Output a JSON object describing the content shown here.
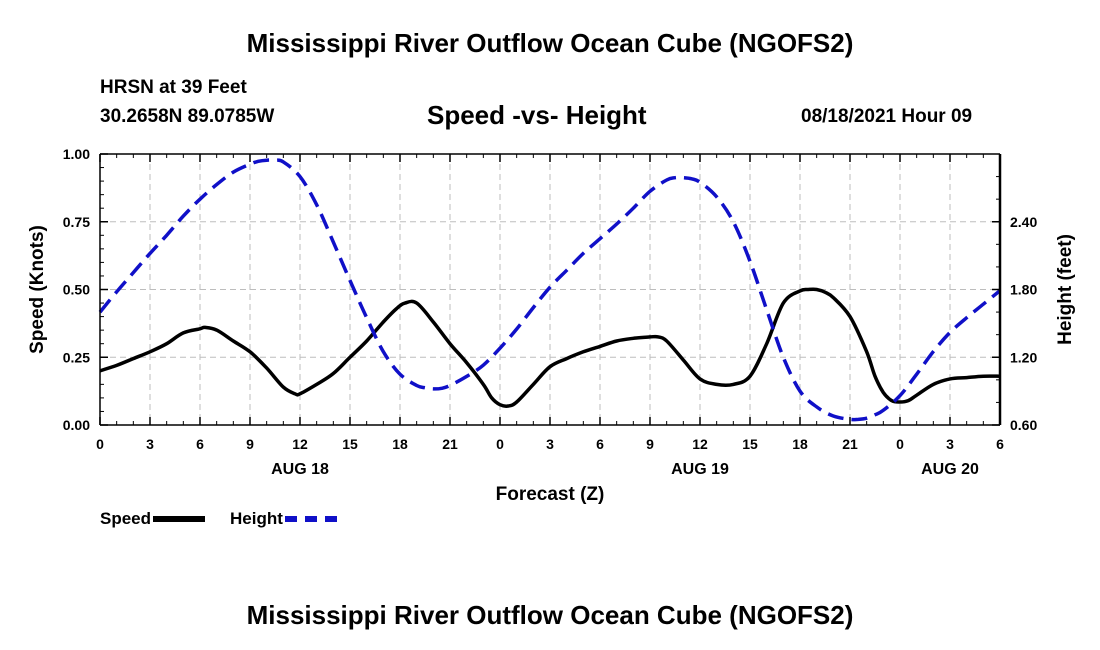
{
  "header": {
    "title": "Mississippi River Outflow Ocean Cube (NGOFS2)",
    "station": "HRSN at 39 Feet",
    "coordinates": "30.2658N  89.0785W",
    "subtitle": "Speed -vs- Height",
    "datetime": "08/18/2021 Hour 09"
  },
  "footer": {
    "title": "Mississippi River Outflow Ocean Cube (NGOFS2)"
  },
  "legend": {
    "speed_label": "Speed",
    "height_label": "Height"
  },
  "chart_data": {
    "type": "line",
    "title": "Speed -vs- Height",
    "xlabel": "Forecast (Z)",
    "ylabel_left": "Speed (Knots)",
    "ylabel_right": "Height (feet)",
    "x_unit": "forecast hours from 00Z Aug 18",
    "xlim": [
      0,
      54
    ],
    "ylim_left": [
      0,
      1.0
    ],
    "ylim_right": [
      0.6,
      3.0
    ],
    "grid": true,
    "legend_position": "bottom-left",
    "x_ticks": [
      {
        "x": 0,
        "label": "0"
      },
      {
        "x": 3,
        "label": "3"
      },
      {
        "x": 6,
        "label": "6"
      },
      {
        "x": 9,
        "label": "9"
      },
      {
        "x": 12,
        "label": "12"
      },
      {
        "x": 15,
        "label": "15"
      },
      {
        "x": 18,
        "label": "18"
      },
      {
        "x": 21,
        "label": "21"
      },
      {
        "x": 24,
        "label": "0"
      },
      {
        "x": 27,
        "label": "3"
      },
      {
        "x": 30,
        "label": "6"
      },
      {
        "x": 33,
        "label": "9"
      },
      {
        "x": 36,
        "label": "12"
      },
      {
        "x": 39,
        "label": "15"
      },
      {
        "x": 42,
        "label": "18"
      },
      {
        "x": 45,
        "label": "21"
      },
      {
        "x": 48,
        "label": "0"
      },
      {
        "x": 51,
        "label": "3"
      },
      {
        "x": 54,
        "label": "6"
      }
    ],
    "date_labels": [
      {
        "x": 12,
        "label": "AUG 18"
      },
      {
        "x": 36,
        "label": "AUG 19"
      },
      {
        "x": 51,
        "label": "AUG 20"
      }
    ],
    "y_ticks_left": [
      {
        "value": 0.0,
        "label": "0.00"
      },
      {
        "value": 0.25,
        "label": "0.25"
      },
      {
        "value": 0.5,
        "label": "0.50"
      },
      {
        "value": 0.75,
        "label": "0.75"
      },
      {
        "value": 1.0,
        "label": "1.00"
      }
    ],
    "y_ticks_right": [
      {
        "value": 0.6,
        "label": "0.60"
      },
      {
        "value": 1.2,
        "label": "1.20"
      },
      {
        "value": 1.8,
        "label": "1.80"
      },
      {
        "value": 2.4,
        "label": "2.40"
      }
    ],
    "series": [
      {
        "name": "Speed",
        "axis": "left",
        "color": "#000000",
        "style": "solid",
        "x": [
          0,
          1,
          2,
          3,
          4,
          5,
          6,
          6.3,
          7,
          8,
          9,
          10,
          11,
          11.7,
          12,
          13,
          14,
          15,
          16,
          17,
          17.8,
          18.3,
          19,
          20,
          21,
          22,
          23,
          23.5,
          24,
          24.5,
          25,
          26,
          27,
          28,
          29,
          30,
          31,
          32,
          33,
          33.5,
          34,
          35,
          36,
          37,
          38,
          39,
          40,
          41,
          42,
          42.5,
          43,
          43.5,
          44,
          45,
          46,
          46.5,
          47,
          47.5,
          48,
          48.5,
          49,
          50,
          51,
          52,
          53,
          54
        ],
        "y": [
          0.2,
          0.22,
          0.245,
          0.27,
          0.3,
          0.34,
          0.355,
          0.36,
          0.35,
          0.31,
          0.27,
          0.21,
          0.14,
          0.115,
          0.115,
          0.15,
          0.19,
          0.25,
          0.31,
          0.38,
          0.43,
          0.45,
          0.45,
          0.38,
          0.3,
          0.23,
          0.15,
          0.1,
          0.075,
          0.07,
          0.085,
          0.15,
          0.215,
          0.245,
          0.27,
          0.29,
          0.31,
          0.32,
          0.325,
          0.325,
          0.31,
          0.24,
          0.17,
          0.15,
          0.15,
          0.18,
          0.3,
          0.45,
          0.495,
          0.5,
          0.5,
          0.49,
          0.47,
          0.4,
          0.27,
          0.18,
          0.12,
          0.09,
          0.085,
          0.09,
          0.11,
          0.15,
          0.17,
          0.175,
          0.18,
          0.18
        ]
      },
      {
        "name": "Height",
        "axis": "right",
        "color": "#1010c8",
        "style": "dashed",
        "x": [
          0,
          1,
          2,
          3,
          4,
          5,
          6,
          7,
          8,
          9,
          9.5,
          10,
          10.5,
          11,
          12,
          13,
          14,
          15,
          16,
          17,
          18,
          19,
          19.5,
          20,
          20.5,
          21,
          22,
          23,
          24,
          25,
          26,
          27,
          28,
          29,
          30,
          31,
          32,
          33,
          34,
          34.5,
          35,
          35.5,
          36,
          37,
          38,
          39,
          40,
          41,
          42,
          43,
          44,
          45,
          45.5,
          46,
          46.5,
          47,
          48,
          49,
          50,
          51,
          52,
          53,
          54
        ],
        "y": [
          1.6,
          1.78,
          1.95,
          2.12,
          2.28,
          2.45,
          2.6,
          2.73,
          2.84,
          2.91,
          2.935,
          2.945,
          2.945,
          2.93,
          2.8,
          2.55,
          2.22,
          1.88,
          1.55,
          1.25,
          1.05,
          0.95,
          0.93,
          0.92,
          0.925,
          0.95,
          1.03,
          1.13,
          1.28,
          1.45,
          1.64,
          1.82,
          1.97,
          2.12,
          2.25,
          2.38,
          2.52,
          2.67,
          2.77,
          2.79,
          2.79,
          2.78,
          2.75,
          2.62,
          2.4,
          2.05,
          1.62,
          1.2,
          0.9,
          0.76,
          0.68,
          0.65,
          0.65,
          0.66,
          0.69,
          0.73,
          0.86,
          1.05,
          1.25,
          1.42,
          1.55,
          1.67,
          1.79
        ]
      }
    ]
  }
}
